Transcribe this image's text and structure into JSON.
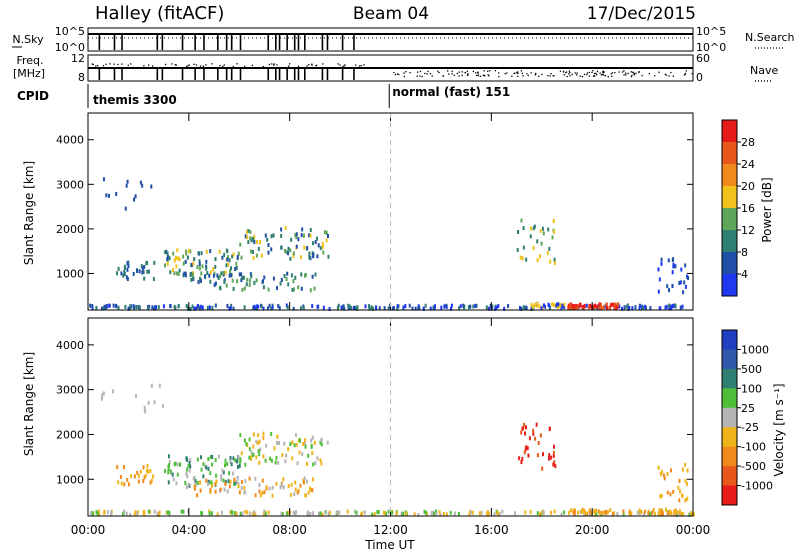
{
  "header": {
    "station": "Halley (fitACF)",
    "beam": "Beam 04",
    "date": "17/Dec/2015"
  },
  "strips": {
    "nsky_label": "N.Sky",
    "nsearch_label": "N.Search",
    "freq_label": "Freq.",
    "freq_unit": "[MHz]",
    "nave_label": "Nave",
    "cpid_label": "CPID",
    "nsky_ticks": [
      "10^5",
      "10^0"
    ],
    "freq_ticks": [
      "12",
      "8"
    ],
    "nave_ticks": [
      "60",
      "0"
    ],
    "nsky_markers": [
      0.45,
      1.05,
      1.35,
      2.75,
      2.95,
      3.75,
      4.25,
      4.6,
      5.15,
      5.5,
      5.7,
      6.05,
      7.15,
      7.45,
      7.6,
      7.9,
      8.2,
      8.35,
      8.6,
      9.3,
      9.5,
      10.1,
      10.55
    ],
    "cpid_segments": [
      {
        "label": "themis 3300",
        "start_hour": 0.0
      },
      {
        "label": "normal (fast) 151",
        "start_hour": 11.95
      }
    ],
    "colors": {
      "nave_dots": "#000000"
    }
  },
  "chart_data": [
    {
      "type": "heatmap",
      "name": "power",
      "ylabel": "Slant Range [km]",
      "xlabel": "Time UT",
      "xlim": [
        0,
        24
      ],
      "ylim": [
        180,
        4600
      ],
      "x_ticks": [
        "00:00",
        "04:00",
        "08:00",
        "12:00",
        "16:00",
        "20:00",
        "00:00"
      ],
      "y_ticks": [
        1000,
        2000,
        3000,
        4000
      ],
      "colorbar": {
        "label": "Power [dB]",
        "ticks": [
          "4",
          "8",
          "12",
          "16",
          "20",
          "24",
          "28"
        ],
        "bands": [
          "#1f38f0",
          "#1f4fa6",
          "#2f7e72",
          "#5fa65a",
          "#f0c21b",
          "#f08a1c",
          "#e8571b",
          "#e81b1b"
        ]
      },
      "clusters": [
        {
          "x": [
            0.0,
            24.0
          ],
          "y": [
            180,
            260
          ],
          "n": 240,
          "colors": [
            "#1f4fa6",
            "#1f38f0",
            "#2f7e72"
          ]
        },
        {
          "x": [
            19.0,
            21.0
          ],
          "y": [
            190,
            290
          ],
          "n": 60,
          "colors": [
            "#e81b1b",
            "#e8571b"
          ]
        },
        {
          "x": [
            17.5,
            19.0
          ],
          "y": [
            220,
            300
          ],
          "n": 24,
          "colors": [
            "#1f38f0",
            "#f0c21b"
          ]
        },
        {
          "x": [
            1.0,
            2.6
          ],
          "y": [
            850,
            1300
          ],
          "n": 30,
          "colors": [
            "#1f4fa6",
            "#2f7e72"
          ]
        },
        {
          "x": [
            3.0,
            6.0
          ],
          "y": [
            900,
            1500
          ],
          "n": 90,
          "colors": [
            "#2f7e72",
            "#5fa65a",
            "#f0c21b",
            "#1f4fa6"
          ]
        },
        {
          "x": [
            4.0,
            9.0
          ],
          "y": [
            600,
            1000
          ],
          "n": 70,
          "colors": [
            "#5fa65a",
            "#2f7e72",
            "#1f4fa6"
          ]
        },
        {
          "x": [
            6.0,
            9.5
          ],
          "y": [
            1300,
            2000
          ],
          "n": 80,
          "colors": [
            "#2f7e72",
            "#5fa65a",
            "#f0c21b",
            "#1f4fa6"
          ]
        },
        {
          "x": [
            0.5,
            3.0
          ],
          "y": [
            2400,
            3100
          ],
          "n": 12,
          "colors": [
            "#1f4fa6"
          ]
        },
        {
          "x": [
            17.0,
            18.5
          ],
          "y": [
            1200,
            2200
          ],
          "n": 30,
          "colors": [
            "#2f7e72",
            "#5fa65a",
            "#f0c21b"
          ]
        },
        {
          "x": [
            22.5,
            23.8
          ],
          "y": [
            500,
            1300
          ],
          "n": 25,
          "colors": [
            "#1f4fa6",
            "#1f38f0"
          ]
        }
      ]
    },
    {
      "type": "heatmap",
      "name": "velocity",
      "ylabel": "Slant Range [km]",
      "xlabel": "Time UT",
      "xlim": [
        0,
        24
      ],
      "ylim": [
        180,
        4600
      ],
      "x_ticks": [
        "00:00",
        "04:00",
        "08:00",
        "12:00",
        "16:00",
        "20:00",
        "00:00"
      ],
      "y_ticks": [
        1000,
        2000,
        3000,
        4000
      ],
      "colorbar": {
        "label": "Velocity [m s⁻¹]",
        "ticks": [
          "1000",
          "500",
          "100",
          "25",
          "-25",
          "-100",
          "-500",
          "-1000"
        ],
        "bands": [
          "#1f3fbf",
          "#2f58a8",
          "#2f7e72",
          "#4fbf3a",
          "#b5b5b5",
          "#f0b41b",
          "#f08a1c",
          "#e8571b",
          "#e81b1b"
        ]
      },
      "clusters": [
        {
          "x": [
            0.0,
            24.0
          ],
          "y": [
            180,
            260
          ],
          "n": 200,
          "colors": [
            "#4fbf3a",
            "#b5b5b5",
            "#f0b41b"
          ]
        },
        {
          "x": [
            19.0,
            23.5
          ],
          "y": [
            200,
            300
          ],
          "n": 60,
          "colors": [
            "#f0b41b",
            "#f08a1c"
          ]
        },
        {
          "x": [
            1.0,
            2.6
          ],
          "y": [
            850,
            1300
          ],
          "n": 25,
          "colors": [
            "#f0b41b",
            "#f08a1c"
          ]
        },
        {
          "x": [
            3.0,
            6.0
          ],
          "y": [
            800,
            1500
          ],
          "n": 90,
          "colors": [
            "#4fbf3a",
            "#2f7e72",
            "#b5b5b5"
          ]
        },
        {
          "x": [
            4.0,
            9.0
          ],
          "y": [
            600,
            1000
          ],
          "n": 70,
          "colors": [
            "#f0b41b",
            "#f08a1c",
            "#b5b5b5"
          ]
        },
        {
          "x": [
            6.0,
            9.5
          ],
          "y": [
            1300,
            2000
          ],
          "n": 80,
          "colors": [
            "#f0b41b",
            "#4fbf3a",
            "#b5b5b5"
          ]
        },
        {
          "x": [
            0.5,
            3.0
          ],
          "y": [
            2400,
            3100
          ],
          "n": 12,
          "colors": [
            "#b5b5b5"
          ]
        },
        {
          "x": [
            17.0,
            18.5
          ],
          "y": [
            1200,
            2200
          ],
          "n": 35,
          "colors": [
            "#e81b1b",
            "#e8571b"
          ]
        },
        {
          "x": [
            22.5,
            23.8
          ],
          "y": [
            500,
            1300
          ],
          "n": 25,
          "colors": [
            "#f08a1c",
            "#f0b41b"
          ]
        }
      ]
    }
  ]
}
